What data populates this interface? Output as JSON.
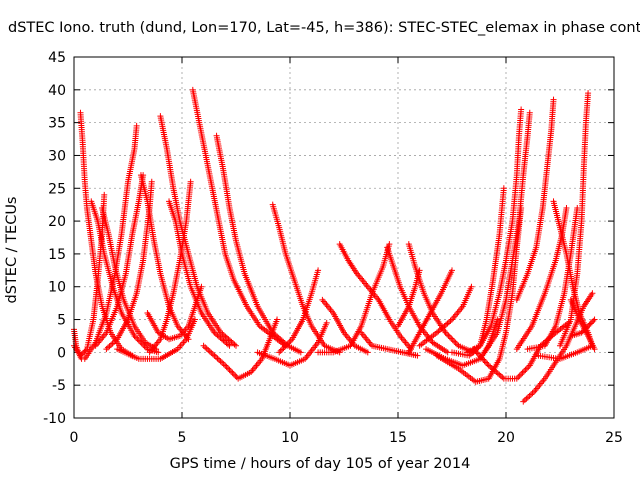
{
  "chart_data": {
    "type": "scatter",
    "title": "dSTEC Iono. truth (dund, Lon=170, Lat=-45, h=386): STEC-STEC_elemax in phase cont",
    "xlabel": "GPS time / hours of day 105 of year 2014",
    "ylabel": "dSTEC  / TECUs",
    "xlim": [
      0,
      25
    ],
    "ylim": [
      -10,
      45
    ],
    "xticks": [
      "0",
      "5",
      "10",
      "15",
      "20",
      "25"
    ],
    "yticks": [
      "-10",
      "-5",
      "0",
      "5",
      "10",
      "15",
      "20",
      "25",
      "30",
      "35",
      "40",
      "45"
    ],
    "grid": true,
    "marker": "+",
    "color": "#ff0000",
    "series": [
      {
        "points": [
          [
            0.0,
            3.5
          ],
          [
            0.1,
            1.0
          ],
          [
            0.2,
            0.0
          ],
          [
            0.35,
            -1.0
          ]
        ]
      },
      {
        "points": [
          [
            0.3,
            36.5
          ],
          [
            0.4,
            32
          ],
          [
            0.5,
            26
          ],
          [
            0.6,
            22
          ],
          [
            0.8,
            17
          ],
          [
            1.0,
            12
          ],
          [
            1.3,
            7
          ],
          [
            1.7,
            3
          ],
          [
            2.2,
            0.5
          ],
          [
            2.7,
            -0.5
          ]
        ]
      },
      {
        "points": [
          [
            0.0,
            1.0
          ],
          [
            0.3,
            -0.5
          ],
          [
            0.6,
            0.5
          ],
          [
            0.9,
            5
          ],
          [
            1.1,
            11
          ],
          [
            1.3,
            18
          ],
          [
            1.4,
            24
          ]
        ]
      },
      {
        "points": [
          [
            0.5,
            -1.0
          ],
          [
            1.0,
            1.5
          ],
          [
            1.5,
            6
          ],
          [
            1.9,
            12
          ],
          [
            2.2,
            18
          ],
          [
            2.5,
            26
          ],
          [
            2.8,
            31
          ],
          [
            2.9,
            34.5
          ]
        ]
      },
      {
        "points": [
          [
            0.8,
            23
          ],
          [
            1.1,
            20
          ],
          [
            1.4,
            15
          ],
          [
            1.8,
            10
          ],
          [
            2.2,
            6
          ],
          [
            2.8,
            2.5
          ],
          [
            3.4,
            0.5
          ],
          [
            3.9,
            0.0
          ]
        ]
      },
      {
        "points": [
          [
            1.3,
            22
          ],
          [
            1.6,
            18
          ],
          [
            1.9,
            13
          ],
          [
            2.3,
            8
          ],
          [
            2.8,
            4
          ],
          [
            3.3,
            1.5
          ],
          [
            3.8,
            0.5
          ]
        ]
      },
      {
        "points": [
          [
            1.0,
            1.0
          ],
          [
            1.5,
            3
          ],
          [
            2.0,
            7
          ],
          [
            2.4,
            12
          ],
          [
            2.7,
            18
          ],
          [
            3.0,
            23
          ],
          [
            3.2,
            27
          ]
        ]
      },
      {
        "points": [
          [
            1.5,
            0.5
          ],
          [
            2.0,
            2
          ],
          [
            2.5,
            5
          ],
          [
            2.9,
            9
          ],
          [
            3.2,
            14
          ],
          [
            3.5,
            22
          ],
          [
            3.6,
            26
          ]
        ]
      },
      {
        "points": [
          [
            3.1,
            27
          ],
          [
            3.4,
            23
          ],
          [
            3.7,
            17
          ],
          [
            4.0,
            12
          ],
          [
            4.4,
            7
          ],
          [
            4.8,
            4
          ],
          [
            5.3,
            2.0
          ]
        ]
      },
      {
        "points": [
          [
            4.0,
            36
          ],
          [
            4.3,
            31
          ],
          [
            4.6,
            25
          ],
          [
            4.9,
            20
          ],
          [
            5.3,
            15
          ],
          [
            5.7,
            10
          ],
          [
            6.2,
            6
          ],
          [
            6.8,
            3
          ],
          [
            7.5,
            1.0
          ]
        ]
      },
      {
        "points": [
          [
            4.4,
            23
          ],
          [
            4.7,
            20
          ],
          [
            5.0,
            15
          ],
          [
            5.4,
            10
          ],
          [
            5.9,
            6
          ],
          [
            6.5,
            3
          ],
          [
            7.2,
            1.0
          ]
        ]
      },
      {
        "points": [
          [
            3.4,
            6.0
          ],
          [
            3.9,
            3
          ],
          [
            4.4,
            2
          ],
          [
            4.9,
            2.5
          ],
          [
            5.3,
            4
          ],
          [
            5.6,
            7
          ],
          [
            5.9,
            10
          ]
        ]
      },
      {
        "points": [
          [
            2.0,
            0.5
          ],
          [
            3.0,
            -1.0
          ],
          [
            4.0,
            -1.0
          ],
          [
            4.8,
            0.5
          ],
          [
            5.2,
            2
          ],
          [
            5.6,
            5
          ]
        ]
      },
      {
        "points": [
          [
            3.5,
            0.0
          ],
          [
            4.0,
            2
          ],
          [
            4.3,
            5
          ],
          [
            4.6,
            9
          ],
          [
            4.9,
            14
          ],
          [
            5.2,
            20
          ],
          [
            5.4,
            26
          ]
        ]
      },
      {
        "points": [
          [
            5.5,
            40
          ],
          [
            5.8,
            35
          ],
          [
            6.1,
            30
          ],
          [
            6.4,
            25
          ],
          [
            6.7,
            20
          ],
          [
            7.0,
            15
          ],
          [
            7.4,
            11
          ],
          [
            8.0,
            7
          ],
          [
            8.6,
            4
          ],
          [
            9.2,
            2.5
          ],
          [
            9.8,
            1.0
          ]
        ]
      },
      {
        "points": [
          [
            6.6,
            33
          ],
          [
            6.9,
            28
          ],
          [
            7.2,
            22
          ],
          [
            7.5,
            17
          ],
          [
            7.9,
            12
          ],
          [
            8.5,
            7
          ],
          [
            9.2,
            3
          ],
          [
            9.9,
            1.0
          ],
          [
            10.5,
            0.0
          ]
        ]
      },
      {
        "points": [
          [
            6.0,
            1.0
          ],
          [
            7.0,
            -2
          ],
          [
            7.6,
            -4
          ],
          [
            8.2,
            -3
          ],
          [
            8.7,
            -1
          ],
          [
            9.0,
            1.5
          ],
          [
            9.4,
            5
          ]
        ]
      },
      {
        "points": [
          [
            8.5,
            0.0
          ],
          [
            9.3,
            -1.0
          ],
          [
            10.0,
            -2
          ],
          [
            10.7,
            -1
          ],
          [
            11.3,
            1.5
          ],
          [
            11.7,
            4.5
          ]
        ]
      },
      {
        "points": [
          [
            9.2,
            22.5
          ],
          [
            9.5,
            19
          ],
          [
            9.8,
            15
          ],
          [
            10.2,
            11
          ],
          [
            10.6,
            7
          ],
          [
            11.0,
            4
          ],
          [
            11.6,
            1.0
          ],
          [
            12.3,
            0.0
          ]
        ]
      },
      {
        "points": [
          [
            9.5,
            0.0
          ],
          [
            10.1,
            2
          ],
          [
            10.6,
            5
          ],
          [
            11.0,
            9
          ],
          [
            11.3,
            12.5
          ]
        ]
      },
      {
        "points": [
          [
            11.5,
            8
          ],
          [
            12.0,
            6
          ],
          [
            12.5,
            3
          ],
          [
            13.0,
            1.0
          ],
          [
            13.6,
            0.0
          ]
        ]
      },
      {
        "points": [
          [
            12.3,
            16.5
          ],
          [
            12.7,
            14
          ],
          [
            13.1,
            12
          ],
          [
            13.6,
            10
          ],
          [
            14.1,
            8
          ],
          [
            14.6,
            5
          ],
          [
            15.1,
            2.5
          ],
          [
            15.6,
            0.5
          ]
        ]
      },
      {
        "points": [
          [
            11.3,
            0.0
          ],
          [
            12.0,
            0.0
          ],
          [
            12.8,
            1.0
          ],
          [
            13.3,
            4
          ],
          [
            13.8,
            9
          ],
          [
            14.3,
            13
          ],
          [
            14.6,
            16.5
          ]
        ]
      },
      {
        "points": [
          [
            13.3,
            3.0
          ],
          [
            13.8,
            1.0
          ],
          [
            14.5,
            0.5
          ],
          [
            15.2,
            0.0
          ],
          [
            15.9,
            -0.5
          ]
        ]
      },
      {
        "points": [
          [
            14.5,
            16
          ],
          [
            14.8,
            13
          ],
          [
            15.1,
            10
          ],
          [
            15.5,
            7
          ],
          [
            16.0,
            4
          ],
          [
            16.6,
            1.5
          ],
          [
            17.3,
            0.0
          ]
        ]
      },
      {
        "points": [
          [
            15.5,
            16.5
          ],
          [
            15.8,
            13
          ],
          [
            16.2,
            9
          ],
          [
            16.6,
            6
          ],
          [
            17.2,
            3
          ],
          [
            17.8,
            1.0
          ],
          [
            18.5,
            0.0
          ]
        ]
      },
      {
        "points": [
          [
            15.0,
            4
          ],
          [
            15.5,
            7
          ],
          [
            15.8,
            10
          ],
          [
            16.0,
            12.5
          ]
        ]
      },
      {
        "points": [
          [
            15.5,
            0.0
          ],
          [
            16.0,
            3
          ],
          [
            16.5,
            6
          ],
          [
            17.0,
            9
          ],
          [
            17.5,
            12.5
          ]
        ]
      },
      {
        "points": [
          [
            16.0,
            1.0
          ],
          [
            16.8,
            3
          ],
          [
            17.5,
            5
          ],
          [
            18.0,
            7
          ],
          [
            18.4,
            10
          ]
        ]
      },
      {
        "points": [
          [
            16.3,
            0.5
          ],
          [
            17.2,
            -1.0
          ],
          [
            18.0,
            -2
          ],
          [
            18.8,
            -1
          ],
          [
            19.2,
            1.0
          ],
          [
            19.6,
            5
          ]
        ]
      },
      {
        "points": [
          [
            16.8,
            -0.5
          ],
          [
            17.8,
            -2.5
          ],
          [
            18.6,
            -4.5
          ],
          [
            19.2,
            -4
          ],
          [
            19.7,
            -1.0
          ],
          [
            20.0,
            3
          ],
          [
            20.3,
            9
          ],
          [
            20.5,
            16
          ],
          [
            20.7,
            22
          ]
        ]
      },
      {
        "points": [
          [
            17.5,
            0.0
          ],
          [
            18.3,
            -0.5
          ],
          [
            18.8,
            1
          ],
          [
            19.1,
            5
          ],
          [
            19.4,
            11
          ],
          [
            19.7,
            18
          ],
          [
            19.9,
            25
          ]
        ]
      },
      {
        "points": [
          [
            18.5,
            0.5
          ],
          [
            19.2,
            -2
          ],
          [
            19.9,
            -4
          ],
          [
            20.5,
            -4
          ],
          [
            21.1,
            -2
          ],
          [
            21.6,
            1.0
          ],
          [
            22.3,
            3
          ],
          [
            22.9,
            4.5
          ]
        ]
      },
      {
        "points": [
          [
            18.2,
            0.0
          ],
          [
            18.8,
            1.0
          ],
          [
            19.3,
            4
          ],
          [
            19.7,
            9
          ],
          [
            20.0,
            14
          ],
          [
            20.3,
            20
          ],
          [
            20.5,
            27
          ],
          [
            20.6,
            33
          ],
          [
            20.7,
            37
          ]
        ]
      },
      {
        "points": [
          [
            19.0,
            0.0
          ],
          [
            19.6,
            3
          ],
          [
            20.0,
            8
          ],
          [
            20.3,
            14
          ],
          [
            20.6,
            20
          ],
          [
            20.8,
            27
          ],
          [
            21.0,
            33
          ],
          [
            21.1,
            36.5
          ]
        ]
      },
      {
        "points": [
          [
            20.8,
            -7.5
          ],
          [
            21.3,
            -6
          ],
          [
            21.8,
            -4
          ],
          [
            22.3,
            -1.5
          ],
          [
            22.8,
            1.0
          ],
          [
            23.2,
            4
          ],
          [
            23.6,
            7
          ],
          [
            24.0,
            9
          ]
        ]
      },
      {
        "points": [
          [
            20.5,
            8
          ],
          [
            21.0,
            12
          ],
          [
            21.4,
            16
          ],
          [
            21.7,
            22
          ],
          [
            21.9,
            28
          ],
          [
            22.1,
            34
          ],
          [
            22.2,
            38.5
          ]
        ]
      },
      {
        "points": [
          [
            20.5,
            0.5
          ],
          [
            21.2,
            4
          ],
          [
            21.8,
            9
          ],
          [
            22.3,
            14
          ],
          [
            22.6,
            18
          ],
          [
            22.8,
            22
          ]
        ]
      },
      {
        "points": [
          [
            22.2,
            23
          ],
          [
            22.5,
            19
          ],
          [
            22.8,
            15
          ],
          [
            23.1,
            10
          ],
          [
            23.4,
            6
          ],
          [
            23.8,
            3
          ],
          [
            24.0,
            1.0
          ]
        ]
      },
      {
        "points": [
          [
            22.5,
            1.0
          ],
          [
            23.0,
            5
          ],
          [
            23.3,
            12
          ],
          [
            23.5,
            20
          ],
          [
            23.6,
            28
          ],
          [
            23.7,
            35
          ],
          [
            23.8,
            39.5
          ]
        ]
      },
      {
        "points": [
          [
            21.0,
            0.5
          ],
          [
            21.8,
            1
          ],
          [
            22.3,
            4
          ],
          [
            22.7,
            9
          ],
          [
            23.0,
            15
          ],
          [
            23.3,
            22
          ]
        ]
      },
      {
        "points": [
          [
            23.0,
            8
          ],
          [
            23.4,
            5
          ],
          [
            23.8,
            2.5
          ],
          [
            24.1,
            0.5
          ]
        ]
      },
      {
        "points": [
          [
            23.0,
            2.5
          ],
          [
            23.5,
            3
          ],
          [
            23.8,
            4
          ],
          [
            24.1,
            5
          ]
        ]
      },
      {
        "points": [
          [
            21.5,
            -0.5
          ],
          [
            22.5,
            -1.0
          ],
          [
            23.3,
            0.0
          ],
          [
            24.0,
            1.0
          ]
        ]
      }
    ]
  }
}
